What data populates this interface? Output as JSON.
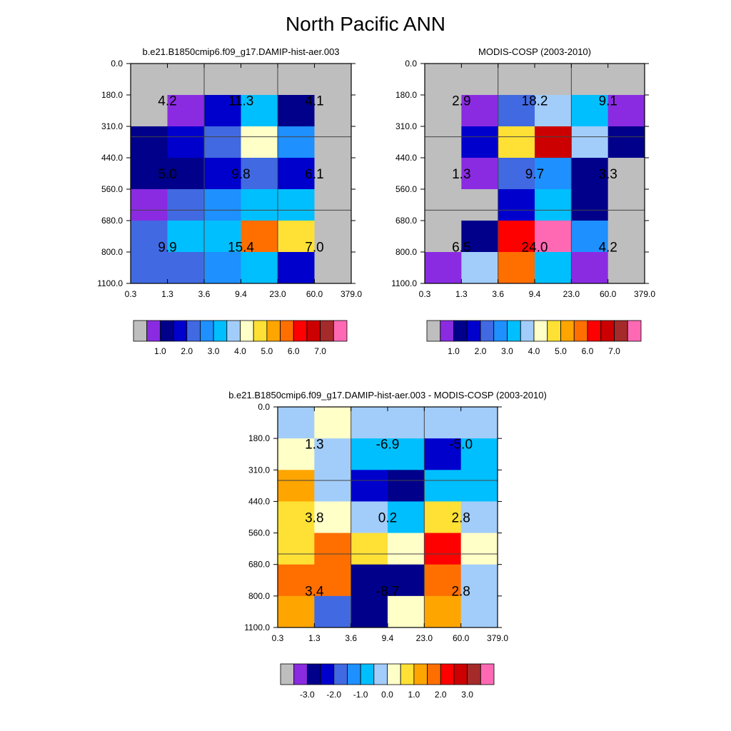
{
  "title": "North Pacific ANN",
  "colors": {
    "gray": "#bebebe",
    "purple": "#8a2be2",
    "navy": "#00008b",
    "mediumblue": "#0000cd",
    "royalblue": "#4169e1",
    "dodgerblue": "#1e90ff",
    "deepskyblue": "#00bfff",
    "lightblue": "#a2cdfa",
    "lightyellow": "#ffffc8",
    "gold": "#ffe135",
    "orange": "#ffa500",
    "darkorange": "#ff6f00",
    "red": "#ff0000",
    "darkred": "#cc0000",
    "brown": "#a52a2a",
    "pink": "#ff69b4"
  },
  "chart_data": [
    {
      "type": "heatmap",
      "title": "b.e21.B1850cmip6.f09_g17.DAMIP-hist-aer.003",
      "x_ticks": [
        "0.3",
        "1.3",
        "3.6",
        "9.4",
        "23.0",
        "60.0",
        "379.0"
      ],
      "y_ticks": [
        "0.0",
        "180.0",
        "310.0",
        "440.0",
        "560.0",
        "680.0",
        "800.0",
        "1100.0"
      ],
      "cells": [
        [
          "gray",
          "gray",
          "gray",
          "gray",
          "gray",
          "gray"
        ],
        [
          "gray",
          "purple",
          "mediumblue",
          "deepskyblue",
          "navy",
          "gray"
        ],
        [
          "navy",
          "mediumblue",
          "royalblue",
          "lightyellow",
          "dodgerblue",
          "gray"
        ],
        [
          "navy",
          "navy",
          "mediumblue",
          "royalblue",
          "mediumblue",
          "gray"
        ],
        [
          "purple",
          "royalblue",
          "dodgerblue",
          "deepskyblue",
          "deepskyblue",
          "gray"
        ],
        [
          "royalblue",
          "deepskyblue",
          "deepskyblue",
          "darkorange",
          "gold",
          "gray"
        ],
        [
          "royalblue",
          "royalblue",
          "dodgerblue",
          "deepskyblue",
          "mediumblue",
          "gray"
        ]
      ],
      "box_labels": [
        {
          "row": 0,
          "col": 0,
          "text": "4.2"
        },
        {
          "row": 0,
          "col": 1,
          "text": "11.3"
        },
        {
          "row": 0,
          "col": 2,
          "text": "4.1"
        },
        {
          "row": 1,
          "col": 0,
          "text": "5.0"
        },
        {
          "row": 1,
          "col": 1,
          "text": "9.8"
        },
        {
          "row": 1,
          "col": 2,
          "text": "6.1"
        },
        {
          "row": 2,
          "col": 0,
          "text": "9.9"
        },
        {
          "row": 2,
          "col": 1,
          "text": "15.4"
        },
        {
          "row": 2,
          "col": 2,
          "text": "7.0"
        }
      ],
      "legend": {
        "colors": [
          "gray",
          "purple",
          "navy",
          "mediumblue",
          "royalblue",
          "dodgerblue",
          "deepskyblue",
          "lightblue",
          "lightyellow",
          "gold",
          "orange",
          "darkorange",
          "red",
          "darkred",
          "brown",
          "pink"
        ],
        "labels": [
          "1.0",
          "2.0",
          "3.0",
          "4.0",
          "5.0",
          "6.0",
          "7.0"
        ],
        "label_start": 2,
        "label_step": 2
      }
    },
    {
      "type": "heatmap",
      "title": "MODIS-COSP (2003-2010)",
      "x_ticks": [
        "0.3",
        "1.3",
        "3.6",
        "9.4",
        "23.0",
        "60.0",
        "379.0"
      ],
      "y_ticks": [
        "0.0",
        "180.0",
        "310.0",
        "440.0",
        "560.0",
        "680.0",
        "800.0",
        "1100.0"
      ],
      "cells": [
        [
          "gray",
          "gray",
          "gray",
          "gray",
          "gray",
          "gray"
        ],
        [
          "gray",
          "purple",
          "royalblue",
          "lightblue",
          "deepskyblue",
          "purple"
        ],
        [
          "gray",
          "mediumblue",
          "gold",
          "darkred",
          "lightblue",
          "navy"
        ],
        [
          "gray",
          "purple",
          "royalblue",
          "dodgerblue",
          "navy",
          "gray"
        ],
        [
          "gray",
          "gray",
          "mediumblue",
          "deepskyblue",
          "navy",
          "gray"
        ],
        [
          "gray",
          "navy",
          "red",
          "pink",
          "dodgerblue",
          "gray"
        ],
        [
          "purple",
          "lightblue",
          "darkorange",
          "deepskyblue",
          "purple",
          "gray"
        ]
      ],
      "box_labels": [
        {
          "row": 0,
          "col": 0,
          "text": "2.9"
        },
        {
          "row": 0,
          "col": 1,
          "text": "18.2"
        },
        {
          "row": 0,
          "col": 2,
          "text": "9.1"
        },
        {
          "row": 1,
          "col": 0,
          "text": "1.3"
        },
        {
          "row": 1,
          "col": 1,
          "text": "9.7"
        },
        {
          "row": 1,
          "col": 2,
          "text": "3.3"
        },
        {
          "row": 2,
          "col": 0,
          "text": "6.5"
        },
        {
          "row": 2,
          "col": 1,
          "text": "24.0"
        },
        {
          "row": 2,
          "col": 2,
          "text": "4.2"
        }
      ],
      "legend": {
        "colors": [
          "gray",
          "purple",
          "navy",
          "mediumblue",
          "royalblue",
          "dodgerblue",
          "deepskyblue",
          "lightblue",
          "lightyellow",
          "gold",
          "orange",
          "darkorange",
          "red",
          "darkred",
          "brown",
          "pink"
        ],
        "labels": [
          "1.0",
          "2.0",
          "3.0",
          "4.0",
          "5.0",
          "6.0",
          "7.0"
        ],
        "label_start": 2,
        "label_step": 2
      }
    },
    {
      "type": "heatmap",
      "title": "b.e21.B1850cmip6.f09_g17.DAMIP-hist-aer.003 - MODIS-COSP (2003-2010)",
      "x_ticks": [
        "0.3",
        "1.3",
        "3.6",
        "9.4",
        "23.0",
        "60.0",
        "379.0"
      ],
      "y_ticks": [
        "0.0",
        "180.0",
        "310.0",
        "440.0",
        "560.0",
        "680.0",
        "800.0",
        "1100.0"
      ],
      "cells": [
        [
          "lightblue",
          "lightyellow",
          "lightblue",
          "lightblue",
          "lightblue",
          "lightblue"
        ],
        [
          "lightyellow",
          "lightblue",
          "deepskyblue",
          "deepskyblue",
          "mediumblue",
          "deepskyblue"
        ],
        [
          "orange",
          "lightblue",
          "mediumblue",
          "navy",
          "deepskyblue",
          "deepskyblue"
        ],
        [
          "gold",
          "lightyellow",
          "lightblue",
          "deepskyblue",
          "gold",
          "lightblue"
        ],
        [
          "gold",
          "darkorange",
          "gold",
          "lightyellow",
          "red",
          "lightyellow"
        ],
        [
          "darkorange",
          "darkorange",
          "navy",
          "navy",
          "darkorange",
          "lightblue"
        ],
        [
          "orange",
          "royalblue",
          "navy",
          "lightyellow",
          "orange",
          "lightblue"
        ]
      ],
      "box_labels": [
        {
          "row": 0,
          "col": 0,
          "text": "1.3"
        },
        {
          "row": 0,
          "col": 1,
          "text": "-6.9"
        },
        {
          "row": 0,
          "col": 2,
          "text": "-5.0"
        },
        {
          "row": 1,
          "col": 0,
          "text": "3.8"
        },
        {
          "row": 1,
          "col": 1,
          "text": "0.2"
        },
        {
          "row": 1,
          "col": 2,
          "text": "2.8"
        },
        {
          "row": 2,
          "col": 0,
          "text": "3.4"
        },
        {
          "row": 2,
          "col": 1,
          "text": "-8.7"
        },
        {
          "row": 2,
          "col": 2,
          "text": "2.8"
        }
      ],
      "legend": {
        "colors": [
          "gray",
          "purple",
          "navy",
          "mediumblue",
          "royalblue",
          "dodgerblue",
          "deepskyblue",
          "lightblue",
          "lightyellow",
          "gold",
          "orange",
          "darkorange",
          "red",
          "darkred",
          "brown",
          "pink"
        ],
        "labels": [
          "-3.0",
          "-2.0",
          "-1.0",
          "0.0",
          "1.0",
          "2.0",
          "3.0"
        ],
        "label_start": 2,
        "label_step": 2
      }
    }
  ]
}
